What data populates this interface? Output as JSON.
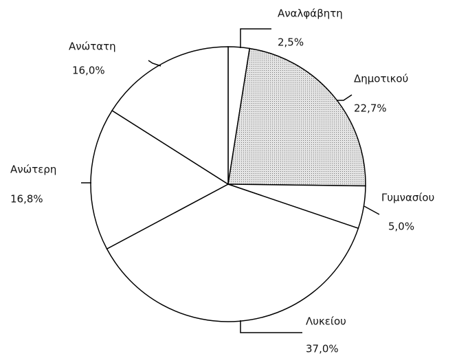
{
  "chart_data": {
    "type": "pie",
    "categories": [
      "Αναλφάβητη",
      "Δημοτικού",
      "Γυμνασίου",
      "Λυκείου",
      "Ανώτερη",
      "Ανώτατη"
    ],
    "values": [
      2.5,
      22.7,
      5.0,
      37.0,
      16.8,
      16.0
    ],
    "value_labels": [
      "2,5%",
      "22,7%",
      "5,0%",
      "37,0%",
      "16,8%",
      "16,0%"
    ],
    "colors": [
      "#ffffff",
      "url(#dots)",
      "#ffffff",
      "#ffffff",
      "#ffffff",
      "#ffffff"
    ]
  }
}
